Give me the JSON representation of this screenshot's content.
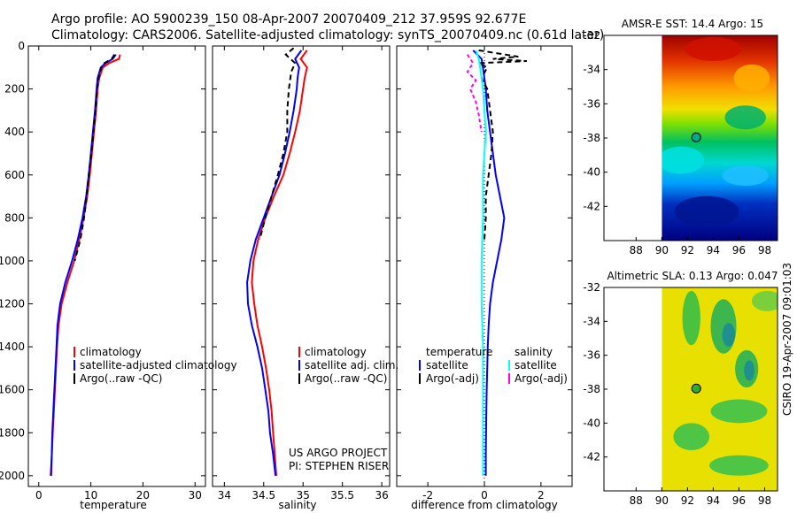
{
  "title_line1": "Argo profile: AO 5900239_150 08-Apr-2007 20070409_212 37.959S 92.677E",
  "title_line2": "Climatology: CARS2006. Satellite-adjusted climatology: synTS_20070409.nc (0.61d later)",
  "footer_project": "US ARGO PROJECT",
  "footer_pi": "PI: STEPHEN RISER",
  "side_label": "CSIRO 19-Apr-2007 09:01:03",
  "colors": {
    "climatology": "#ff0000",
    "satellite": "#0000ff",
    "argo": "#000000",
    "sat_salinity": "#00ffff",
    "argo_salinity": "#ff00ff",
    "marker_sst": "#00aa88",
    "marker_sla": "#33aa33"
  },
  "chart_data": [
    {
      "type": "line",
      "name": "temperature-profile",
      "xlabel": "temperature",
      "xlim": [
        -2,
        32
      ],
      "ylim": [
        2050,
        0
      ],
      "x_ticks": [
        0,
        10,
        20,
        30
      ],
      "y_ticks": [
        0,
        200,
        400,
        600,
        800,
        1000,
        1200,
        1400,
        1600,
        1800,
        2000
      ],
      "legend": [
        "climatology",
        "satellite-adjusted climatology",
        "Argo(..raw -QC)"
      ],
      "series": [
        {
          "name": "climatology",
          "depth": [
            40,
            60,
            80,
            100,
            150,
            200,
            300,
            400,
            500,
            600,
            700,
            800,
            900,
            1000,
            1100,
            1200,
            1300,
            1400,
            1500,
            1600,
            1700,
            1800,
            1900,
            2000
          ],
          "values": [
            15.6,
            15.4,
            13.5,
            12.3,
            11.6,
            11.3,
            11.0,
            10.6,
            10.2,
            9.8,
            9.3,
            8.6,
            7.8,
            6.8,
            5.5,
            4.4,
            3.8,
            3.5,
            3.3,
            3.1,
            2.9,
            2.7,
            2.5,
            2.4
          ]
        },
        {
          "name": "satellite-adjusted climatology",
          "depth": [
            40,
            60,
            80,
            100,
            150,
            200,
            300,
            400,
            500,
            600,
            700,
            800,
            900,
            1000,
            1100,
            1200,
            1300,
            1400,
            1500,
            1600,
            1700,
            1800,
            1900,
            2000
          ],
          "values": [
            14.8,
            14.2,
            12.8,
            11.9,
            11.3,
            11.1,
            10.8,
            10.4,
            10.0,
            9.6,
            9.1,
            8.4,
            7.5,
            6.4,
            5.1,
            4.1,
            3.6,
            3.4,
            3.2,
            3.0,
            2.8,
            2.6,
            2.5,
            2.3
          ]
        },
        {
          "name": "Argo(..raw -QC)",
          "depth": [
            40,
            60,
            80,
            100,
            150,
            200,
            300,
            400,
            500,
            600,
            700,
            800,
            900,
            1000
          ],
          "values": [
            14.5,
            14.0,
            12.6,
            12.0,
            11.5,
            11.2,
            10.9,
            10.5,
            10.1,
            9.6,
            9.2,
            8.7,
            8.0,
            6.9
          ]
        }
      ]
    },
    {
      "type": "line",
      "name": "salinity-profile",
      "xlabel": "salinity",
      "xlim": [
        33.85,
        36.1
      ],
      "ylim": [
        2050,
        0
      ],
      "x_ticks": [
        34,
        34.5,
        35,
        35.5,
        36
      ],
      "y_ticks": [
        0,
        200,
        400,
        600,
        800,
        1000,
        1200,
        1400,
        1600,
        1800,
        2000
      ],
      "legend": [
        "climatology",
        "satellite adj. clim.",
        "Argo(..raw -QC)"
      ],
      "series": [
        {
          "name": "climatology",
          "depth": [
            20,
            60,
            100,
            150,
            200,
            300,
            400,
            500,
            600,
            700,
            800,
            900,
            1000,
            1100,
            1200,
            1300,
            1400,
            1500,
            1600,
            1700,
            1800,
            1900,
            2000
          ],
          "values": [
            35.05,
            34.97,
            35.05,
            35.02,
            35.0,
            34.96,
            34.9,
            34.83,
            34.75,
            34.63,
            34.52,
            34.43,
            34.37,
            34.35,
            34.38,
            34.42,
            34.48,
            34.53,
            34.57,
            34.6,
            34.62,
            34.64,
            34.66
          ]
        },
        {
          "name": "satellite adj. clim.",
          "depth": [
            20,
            60,
            100,
            150,
            200,
            300,
            400,
            500,
            600,
            700,
            800,
            900,
            1000,
            1100,
            1200,
            1300,
            1400,
            1500,
            1600,
            1700,
            1800,
            1900,
            2000
          ],
          "values": [
            34.98,
            34.9,
            34.95,
            34.93,
            34.92,
            34.88,
            34.83,
            34.77,
            34.7,
            34.6,
            34.5,
            34.4,
            34.33,
            34.29,
            34.3,
            34.35,
            34.42,
            34.48,
            34.52,
            34.56,
            34.58,
            34.62,
            34.65
          ]
        },
        {
          "name": "Argo(..raw -QC)",
          "depth": [
            10,
            40,
            80,
            120,
            200,
            300,
            400,
            500,
            600,
            700,
            800,
            900
          ],
          "values": [
            34.88,
            34.78,
            34.9,
            34.85,
            34.82,
            34.8,
            34.8,
            34.75,
            34.68,
            34.6,
            34.52,
            34.45
          ]
        }
      ]
    },
    {
      "type": "line",
      "name": "difference-profile",
      "xlabel": "difference from climatology",
      "xlim": [
        -3.1,
        3.1
      ],
      "ylim": [
        2050,
        0
      ],
      "x_ticks": [
        -2,
        0,
        2
      ],
      "y_ticks": [
        0,
        200,
        400,
        600,
        800,
        1000,
        1200,
        1400,
        1600,
        1800,
        2000
      ],
      "legend_temperature": {
        "title": "temperature",
        "items": [
          "satellite",
          "Argo(-adj)"
        ]
      },
      "legend_salinity": {
        "title": "salinity",
        "items": [
          "satellite",
          "Argo(-adj)"
        ]
      },
      "series": [
        {
          "name": "temperature satellite",
          "depth": [
            20,
            60,
            100,
            150,
            200,
            300,
            400,
            500,
            600,
            700,
            800,
            900,
            1000,
            1100,
            1200,
            1300,
            1400,
            1500,
            1600,
            1700,
            1800,
            1900,
            2000
          ],
          "values": [
            -0.4,
            -0.1,
            -0.05,
            0.0,
            0.05,
            0.1,
            0.2,
            0.3,
            0.4,
            0.55,
            0.7,
            0.6,
            0.45,
            0.3,
            0.2,
            0.15,
            0.12,
            0.1,
            0.08,
            0.07,
            0.06,
            0.05,
            0.05
          ]
        },
        {
          "name": "temperature Argo(-adj)",
          "depth": [
            20,
            50,
            60,
            70,
            80,
            100,
            150,
            200,
            300,
            400,
            500,
            600,
            700,
            800,
            900
          ],
          "values": [
            -0.2,
            1.2,
            0.3,
            1.5,
            -0.2,
            0.1,
            -0.1,
            0.1,
            0.2,
            0.3,
            0.25,
            0.15,
            0.05,
            0.05,
            0.0
          ]
        },
        {
          "name": "salinity satellite",
          "depth": [
            20,
            60,
            100,
            150,
            200,
            300,
            400,
            500,
            600,
            800,
            1000,
            1200,
            1400,
            1600,
            1800,
            2000
          ],
          "values": [
            -0.3,
            -0.2,
            -0.15,
            -0.1,
            -0.05,
            0.0,
            0.05,
            0.0,
            -0.05,
            -0.05,
            -0.1,
            -0.1,
            -0.05,
            -0.05,
            -0.05,
            -0.05
          ]
        },
        {
          "name": "salinity Argo(-adj)",
          "depth": [
            40,
            80,
            120,
            160,
            200,
            260,
            320,
            400
          ],
          "values": [
            -0.6,
            -0.4,
            -0.6,
            -0.3,
            -0.5,
            -0.3,
            -0.2,
            -0.1
          ]
        }
      ]
    },
    {
      "type": "heatmap",
      "name": "amsre-sst-map",
      "title": "AMSR-E SST: 14.4  Argo: 15",
      "xlim": [
        85.5,
        99
      ],
      "ylim": [
        -44,
        -32
      ],
      "x_ticks": [
        88,
        90,
        92,
        94,
        96,
        98
      ],
      "y_ticks": [
        -32,
        -34,
        -36,
        -38,
        -40,
        -42
      ],
      "data_xlim": [
        90,
        99
      ],
      "argo_position": [
        92.677,
        -37.959
      ]
    },
    {
      "type": "heatmap",
      "name": "altimetric-sla-map",
      "title": "Altimetric SLA: 0.13  Argo: 0.047",
      "xlim": [
        85.5,
        99
      ],
      "ylim": [
        -44,
        -32
      ],
      "x_ticks": [
        88,
        90,
        92,
        94,
        96,
        98
      ],
      "y_ticks": [
        -32,
        -34,
        -36,
        -38,
        -40,
        -42
      ],
      "data_xlim": [
        90,
        99
      ],
      "argo_position": [
        92.677,
        -37.959
      ]
    }
  ]
}
